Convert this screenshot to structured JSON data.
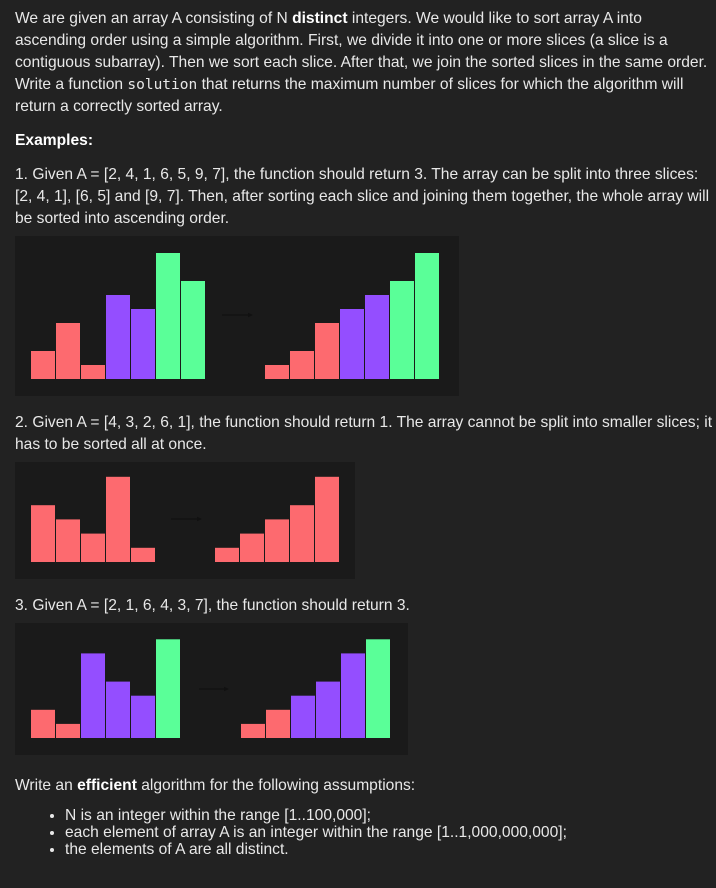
{
  "intro": {
    "part1": "We are given an array A consisting of N ",
    "distinct_bold": "distinct",
    "part2": " integers. We would like to sort array A into ascending order using a simple algorithm. First, we divide it into one or more slices (a slice is a contiguous subarray). Then we sort each slice. After that, we join the sorted slices in the same order. Write a function ",
    "code": "solution",
    "part3": " that returns the maximum number of slices for which the algorithm will return a correctly sorted array."
  },
  "examples_heading": "Examples:",
  "examples": [
    {
      "text": "1. Given A = [2, 4, 1, 6, 5, 9, 7], the function should return 3. The array can be split into three slices: [2, 4, 1], [6, 5] and [9, 7]. Then, after sorting each slice and joining them together, the whole array will be sorted into ascending order.",
      "before": [
        2,
        4,
        1,
        6,
        5,
        9,
        7
      ],
      "after": [
        1,
        2,
        4,
        5,
        6,
        7,
        9
      ],
      "before_colors": [
        "red",
        "red",
        "red",
        "purple",
        "purple",
        "green",
        "green"
      ],
      "after_colors": [
        "red",
        "red",
        "red",
        "purple",
        "purple",
        "green",
        "green"
      ]
    },
    {
      "text": "2. Given A = [4, 3, 2, 6, 1], the function should return 1. The array cannot be split into smaller slices; it has to be sorted all at once.",
      "before": [
        4,
        3,
        2,
        6,
        1
      ],
      "after": [
        1,
        2,
        3,
        4,
        6
      ],
      "before_colors": [
        "red",
        "red",
        "red",
        "red",
        "red"
      ],
      "after_colors": [
        "red",
        "red",
        "red",
        "red",
        "red"
      ]
    },
    {
      "text": "3. Given A = [2, 1, 6, 4, 3, 7], the function should return 3.",
      "before": [
        2,
        1,
        6,
        4,
        3,
        7
      ],
      "after": [
        1,
        2,
        3,
        4,
        6,
        7
      ],
      "before_colors": [
        "red",
        "red",
        "purple",
        "purple",
        "purple",
        "green"
      ],
      "after_colors": [
        "red",
        "red",
        "purple",
        "purple",
        "purple",
        "green"
      ]
    }
  ],
  "assumptions": {
    "part1": "Write an ",
    "efficient_bold": "efficient",
    "part2": " algorithm for the following assumptions:",
    "items": [
      "N is an integer within the range [1..100,000];",
      "each element of array A is an integer within the range [1..1,000,000,000];",
      "the elements of A are all distinct."
    ]
  },
  "colors": {
    "red": "#fd6a6f",
    "purple": "#944eff",
    "green": "#5aff98",
    "arrow": "#111111"
  }
}
